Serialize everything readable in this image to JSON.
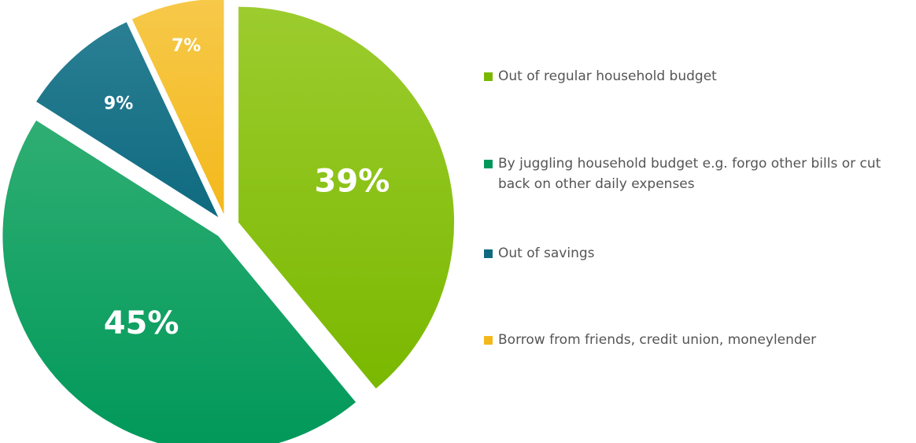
{
  "chart_data": {
    "type": "pie",
    "title": "",
    "categories": [
      "Out of regular household budget",
      "By juggling household budget e.g. forgo other bills or cut back on other daily expenses",
      "Out of savings",
      "Borrow from friends, credit union, moneylender"
    ],
    "values": [
      39,
      45,
      9,
      7
    ],
    "value_labels": [
      "39%",
      "45%",
      "9%",
      "7%"
    ],
    "colors": [
      "#7ab800",
      "#00985a",
      "#0f6a80",
      "#f3b81b"
    ],
    "exploded": true,
    "start_angle": "12 o'clock",
    "direction": "clockwise",
    "legend_position": "right"
  }
}
